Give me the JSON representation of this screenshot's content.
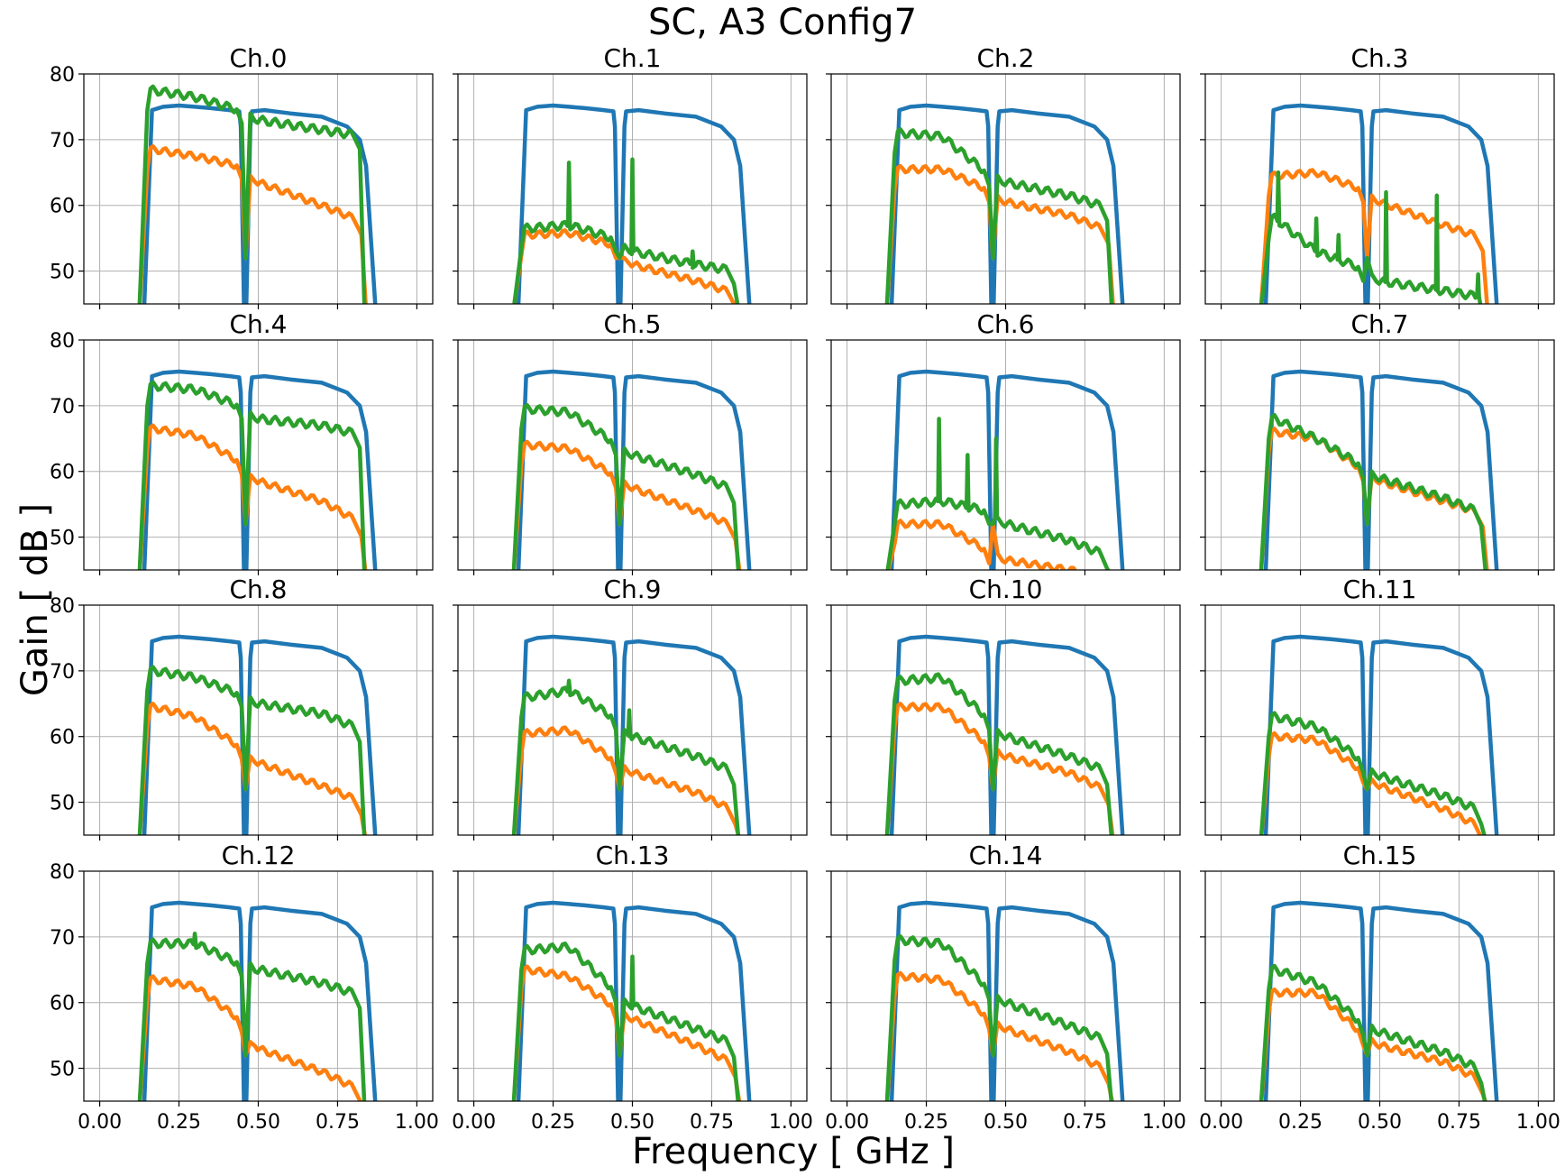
{
  "figure": {
    "title": "SC, A3 Config7",
    "xlabel": "Frequency [ GHz ]",
    "ylabel": "Gain [ dB ]",
    "colors": {
      "blue": "#1f77b4",
      "orange": "#ff7f0e",
      "green": "#2ca02c"
    }
  },
  "chart_data": {
    "type": "line",
    "layout": "4x4 grid, shared axes",
    "xlim": [
      -0.05,
      1.05
    ],
    "ylim": [
      45,
      80
    ],
    "xticks": [
      "0.00",
      "0.25",
      "0.50",
      "0.75",
      "1.00"
    ],
    "yticks": [
      "50",
      "60",
      "70",
      "80"
    ],
    "grid": true,
    "legend": "none",
    "panels": [
      {
        "title": "Ch.0",
        "orange": [
          68.5,
          67.5,
          66.0,
          63.5,
          60.0,
          57.5
        ],
        "green": [
          77.5,
          76.5,
          74.5,
          73.0,
          71.5,
          70.5
        ],
        "green_spikes": []
      },
      {
        "title": "Ch.1",
        "orange": [
          55.5,
          55.8,
          54.0,
          51.0,
          48.5,
          46.5
        ],
        "green": [
          56.5,
          57.0,
          55.0,
          53.0,
          51.0,
          50.0
        ],
        "green_spikes": [
          [
            0.3,
            66.5
          ],
          [
            0.5,
            67.0
          ],
          [
            0.69,
            53.0
          ]
        ]
      },
      {
        "title": "Ch.2",
        "orange": [
          65.5,
          65.5,
          62.5,
          60.5,
          58.5,
          56.0
        ],
        "green": [
          71.0,
          70.5,
          65.0,
          63.5,
          61.5,
          59.5
        ],
        "green_spikes": []
      },
      {
        "title": "Ch.3",
        "orange": [
          64.5,
          65.0,
          62.5,
          60.5,
          57.0,
          55.0
        ],
        "green": [
          58.0,
          53.0,
          50.5,
          48.5,
          47.0,
          46.0
        ],
        "green_spikes": [
          [
            0.18,
            65.0
          ],
          [
            0.3,
            58.0
          ],
          [
            0.37,
            55.5
          ],
          [
            0.52,
            62.0
          ],
          [
            0.68,
            61.5
          ],
          [
            0.81,
            49.5
          ]
        ]
      },
      {
        "title": "Ch.4",
        "orange": [
          66.5,
          65.5,
          61.5,
          58.5,
          55.5,
          52.0
        ],
        "green": [
          73.0,
          72.5,
          70.0,
          68.0,
          67.0,
          65.5
        ],
        "green_spikes": []
      },
      {
        "title": "Ch.5",
        "orange": [
          64.0,
          63.5,
          59.5,
          57.5,
          54.0,
          51.5
        ],
        "green": [
          69.5,
          69.0,
          64.5,
          62.5,
          59.5,
          57.0
        ],
        "green_spikes": []
      },
      {
        "title": "Ch.6",
        "orange": [
          52.0,
          52.0,
          48.0,
          46.5,
          45.0,
          44.0
        ],
        "green": [
          55.0,
          55.5,
          54.0,
          52.0,
          49.5,
          47.0
        ],
        "green_spikes": [
          [
            0.29,
            68.0
          ],
          [
            0.38,
            62.5
          ],
          [
            0.47,
            65.0
          ]
        ]
      },
      {
        "title": "Ch.7",
        "orange": [
          66.0,
          65.0,
          60.5,
          58.5,
          55.5,
          53.5
        ],
        "green": [
          68.0,
          65.0,
          61.0,
          59.0,
          56.0,
          53.5
        ],
        "green_spikes": []
      },
      {
        "title": "Ch.8",
        "orange": [
          64.5,
          63.0,
          58.5,
          56.0,
          52.5,
          50.0
        ],
        "green": [
          70.0,
          69.0,
          66.5,
          65.0,
          63.5,
          61.0
        ],
        "green_spikes": []
      },
      {
        "title": "Ch.9",
        "orange": [
          60.5,
          61.0,
          56.5,
          54.5,
          51.5,
          48.5
        ],
        "green": [
          66.0,
          67.0,
          63.0,
          60.0,
          57.0,
          54.5
        ],
        "green_spikes": [
          [
            0.3,
            68.5
          ],
          [
            0.49,
            64.0
          ]
        ]
      },
      {
        "title": "Ch.10",
        "orange": [
          64.5,
          64.5,
          59.0,
          57.0,
          54.5,
          51.5
        ],
        "green": [
          68.5,
          69.0,
          63.0,
          60.0,
          57.0,
          54.5
        ],
        "green_spikes": []
      },
      {
        "title": "Ch.11",
        "orange": [
          60.0,
          59.5,
          55.0,
          52.5,
          49.0,
          46.0
        ],
        "green": [
          63.0,
          61.5,
          56.5,
          54.0,
          51.0,
          48.5
        ],
        "green_spikes": []
      },
      {
        "title": "Ch.12",
        "orange": [
          63.5,
          62.5,
          57.5,
          53.0,
          49.5,
          46.5
        ],
        "green": [
          69.0,
          69.0,
          66.0,
          65.0,
          63.0,
          61.0
        ],
        "green_spikes": [
          [
            0.3,
            70.5
          ]
        ]
      },
      {
        "title": "Ch.13",
        "orange": [
          65.0,
          64.0,
          59.5,
          57.5,
          53.5,
          50.5
        ],
        "green": [
          68.0,
          68.5,
          62.0,
          59.5,
          56.0,
          53.5
        ],
        "green_spikes": [
          [
            0.5,
            67.0
          ]
        ]
      },
      {
        "title": "Ch.14",
        "orange": [
          64.0,
          63.5,
          58.0,
          56.0,
          52.5,
          49.5
        ],
        "green": [
          69.5,
          69.0,
          62.5,
          60.0,
          56.5,
          54.0
        ],
        "green_spikes": []
      },
      {
        "title": "Ch.15",
        "orange": [
          61.5,
          61.5,
          55.5,
          53.5,
          51.0,
          48.0
        ],
        "green": [
          65.0,
          63.0,
          57.0,
          55.5,
          52.5,
          49.5
        ],
        "green_spikes": []
      }
    ]
  }
}
